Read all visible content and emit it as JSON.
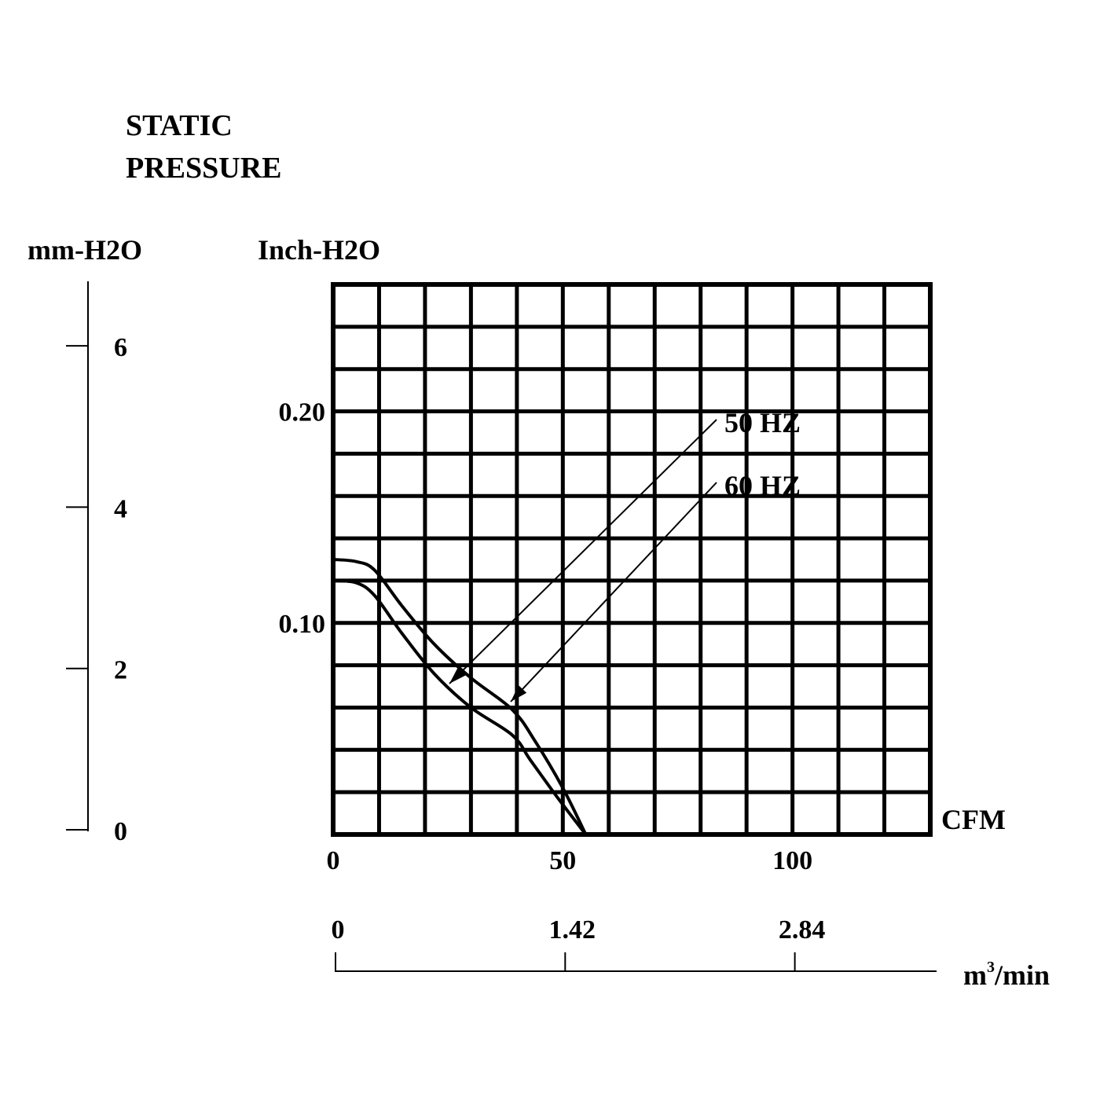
{
  "colors": {
    "ink": "#000000",
    "background": "#ffffff"
  },
  "chart_data": {
    "type": "line",
    "title_lines": [
      "STATIC",
      "PRESSURE"
    ],
    "left_axis": {
      "unit": "mm-H2O",
      "ticks": [
        0,
        2,
        4,
        6
      ],
      "range": [
        0,
        6.8
      ]
    },
    "y_axis": {
      "unit": "Inch-H2O",
      "ticks": [
        {
          "value": 0.1,
          "label": "0.10"
        },
        {
          "value": 0.2,
          "label": "0.20"
        }
      ],
      "range": [
        0,
        0.26
      ]
    },
    "x_axis": {
      "unit": "CFM",
      "ticks": [
        0,
        50,
        100
      ],
      "range": [
        0,
        130
      ]
    },
    "secondary_x_axis": {
      "unit": "m3/min",
      "ticks": [
        {
          "value": 0,
          "label": "0"
        },
        {
          "value": 1.42,
          "label": "1.42"
        },
        {
          "value": 2.84,
          "label": "2.84"
        }
      ]
    },
    "grid": true,
    "series": [
      {
        "name": "50 HZ",
        "x": [
          0,
          5,
          9,
          15,
          22,
          30,
          39,
          43,
          49,
          55
        ],
        "y": [
          0.12,
          0.119,
          0.113,
          0.095,
          0.076,
          0.06,
          0.047,
          0.035,
          0.017,
          0.0
        ]
      },
      {
        "name": "60 HZ",
        "x": [
          0,
          5,
          9,
          15,
          22,
          30,
          39,
          44,
          50,
          55
        ],
        "y": [
          0.13,
          0.129,
          0.125,
          0.108,
          0.09,
          0.074,
          0.059,
          0.044,
          0.022,
          0.0
        ]
      }
    ]
  }
}
